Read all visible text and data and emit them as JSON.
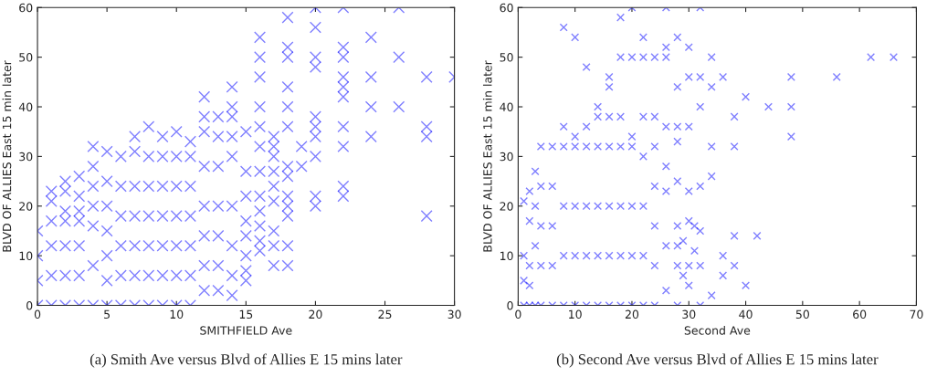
{
  "chart_data": [
    {
      "type": "scatter",
      "xlabel": "SMITHFIELD Ave",
      "ylabel": "BLVD OF ALLIES East 15 min later",
      "annotations": [
        "(a) Smith Ave versus Blvd of Allies E 15 mins later"
      ],
      "xlim": [
        0,
        30
      ],
      "ylim": [
        0,
        60
      ],
      "xticks": [
        0,
        5,
        10,
        15,
        20,
        25,
        30
      ],
      "yticks": [
        0,
        10,
        20,
        30,
        40,
        50,
        60
      ],
      "grid": false,
      "marker": "cross",
      "series": [
        {
          "color": "#0000ff",
          "x": [
            0,
            0,
            0,
            0,
            1,
            1,
            1,
            1,
            1,
            1,
            2,
            2,
            2,
            2,
            2,
            2,
            2,
            3,
            3,
            3,
            3,
            3,
            3,
            3,
            4,
            4,
            4,
            4,
            4,
            4,
            4,
            5,
            5,
            5,
            5,
            5,
            5,
            5,
            6,
            6,
            6,
            6,
            6,
            6,
            7,
            7,
            7,
            7,
            7,
            7,
            7,
            8,
            8,
            8,
            8,
            8,
            8,
            8,
            9,
            9,
            9,
            9,
            9,
            9,
            9,
            10,
            10,
            10,
            10,
            10,
            10,
            10,
            11,
            11,
            11,
            11,
            11,
            11,
            11,
            12,
            12,
            12,
            12,
            12,
            12,
            12,
            12,
            13,
            13,
            13,
            13,
            13,
            13,
            13,
            14,
            14,
            14,
            14,
            14,
            14,
            14,
            14,
            14,
            15,
            15,
            15,
            15,
            15,
            15,
            15,
            15,
            16,
            16,
            16,
            16,
            16,
            16,
            16,
            16,
            16,
            16,
            16,
            16,
            17,
            17,
            17,
            17,
            17,
            17,
            17,
            17,
            17,
            18,
            18,
            18,
            18,
            18,
            18,
            18,
            18,
            18,
            18,
            18,
            18,
            18,
            19,
            19,
            20,
            20,
            20,
            20,
            20,
            20,
            20,
            20,
            20,
            20,
            22,
            22,
            22,
            22,
            22,
            22,
            22,
            22,
            22,
            22,
            24,
            24,
            24,
            24,
            26,
            26,
            26,
            28,
            28,
            28,
            28,
            30
          ],
          "values": [
            0,
            5,
            10,
            15,
            0,
            6,
            12,
            17,
            21,
            23,
            0,
            6,
            12,
            17,
            19,
            23,
            25,
            0,
            6,
            12,
            17,
            19,
            22,
            26,
            0,
            8,
            16,
            20,
            24,
            28,
            32,
            0,
            5,
            10,
            15,
            20,
            25,
            31,
            0,
            6,
            12,
            18,
            24,
            30,
            0,
            6,
            12,
            18,
            24,
            31,
            34,
            0,
            6,
            12,
            18,
            24,
            30,
            36,
            0,
            6,
            12,
            18,
            24,
            30,
            34,
            0,
            6,
            12,
            18,
            24,
            30,
            35,
            0,
            6,
            12,
            18,
            24,
            30,
            33,
            3,
            8,
            14,
            20,
            28,
            35,
            38,
            42,
            3,
            8,
            14,
            20,
            28,
            34,
            38,
            2,
            6,
            12,
            20,
            30,
            34,
            38,
            40,
            44,
            5,
            7,
            10,
            14,
            17,
            22,
            27,
            35,
            11,
            13,
            16,
            19,
            22,
            27,
            32,
            36,
            40,
            46,
            50,
            54,
            8,
            12,
            15,
            21,
            24,
            27,
            30,
            32,
            34,
            8,
            12,
            18,
            20,
            22,
            26,
            28,
            36,
            40,
            44,
            50,
            52,
            58,
            28,
            32,
            20,
            22,
            30,
            34,
            36,
            38,
            48,
            50,
            56,
            60,
            22,
            24,
            32,
            36,
            42,
            44,
            46,
            50,
            52,
            60,
            34,
            40,
            46,
            54,
            40,
            50,
            60,
            18,
            34,
            36,
            46,
            46
          ]
        }
      ]
    },
    {
      "type": "scatter",
      "xlabel": "Second Ave",
      "ylabel": "BLVD OF ALLIES East 15 min later",
      "annotations": [
        "(b) Second Ave versus Blvd of Allies E 15 mins later"
      ],
      "xlim": [
        0,
        70
      ],
      "ylim": [
        0,
        60
      ],
      "xticks": [
        0,
        10,
        20,
        30,
        40,
        50,
        60,
        70
      ],
      "yticks": [
        0,
        10,
        20,
        30,
        40,
        50,
        60
      ],
      "grid": false,
      "marker": "cross",
      "series": [
        {
          "color": "#0000ff",
          "x": [
            1,
            1,
            1,
            1,
            2,
            2,
            2,
            2,
            2,
            3,
            3,
            3,
            3,
            4,
            4,
            4,
            4,
            4,
            6,
            6,
            6,
            6,
            6,
            8,
            8,
            8,
            8,
            8,
            8,
            10,
            10,
            10,
            10,
            10,
            10,
            12,
            12,
            12,
            12,
            12,
            12,
            14,
            14,
            14,
            14,
            14,
            14,
            16,
            16,
            16,
            16,
            16,
            16,
            16,
            18,
            18,
            18,
            18,
            18,
            18,
            18,
            20,
            20,
            20,
            20,
            20,
            20,
            20,
            22,
            22,
            22,
            22,
            22,
            22,
            22,
            24,
            24,
            24,
            24,
            24,
            24,
            24,
            26,
            26,
            26,
            26,
            26,
            26,
            26,
            26,
            28,
            28,
            28,
            28,
            28,
            28,
            28,
            28,
            28,
            29,
            29,
            30,
            30,
            30,
            30,
            30,
            30,
            30,
            31,
            31,
            32,
            32,
            32,
            32,
            32,
            32,
            32,
            34,
            34,
            34,
            34,
            34,
            36,
            36,
            36,
            38,
            38,
            38,
            38,
            40,
            40,
            42,
            44,
            48,
            48,
            48,
            56,
            62,
            66
          ],
          "values": [
            0,
            5,
            10,
            21,
            0,
            8,
            17,
            23,
            4,
            0,
            12,
            20,
            27,
            0,
            8,
            16,
            24,
            32,
            0,
            8,
            16,
            24,
            32,
            0,
            10,
            20,
            32,
            36,
            56,
            0,
            10,
            20,
            32,
            34,
            54,
            0,
            10,
            20,
            32,
            36,
            48,
            0,
            10,
            20,
            32,
            38,
            40,
            0,
            10,
            20,
            32,
            38,
            44,
            46,
            0,
            10,
            20,
            32,
            38,
            50,
            58,
            0,
            10,
            20,
            32,
            34,
            50,
            60,
            0,
            10,
            20,
            30,
            38,
            50,
            54,
            0,
            8,
            16,
            24,
            32,
            38,
            50,
            3,
            12,
            23,
            28,
            36,
            50,
            52,
            60,
            0,
            8,
            16,
            25,
            33,
            36,
            44,
            54,
            12,
            6,
            13,
            4,
            8,
            17,
            23,
            36,
            46,
            52,
            11,
            16,
            0,
            8,
            15,
            24,
            40,
            46,
            60,
            2,
            26,
            32,
            44,
            50,
            6,
            10,
            46,
            8,
            14,
            32,
            38,
            4,
            42,
            14,
            40,
            34,
            40,
            46,
            46,
            50,
            50
          ]
        }
      ]
    }
  ]
}
